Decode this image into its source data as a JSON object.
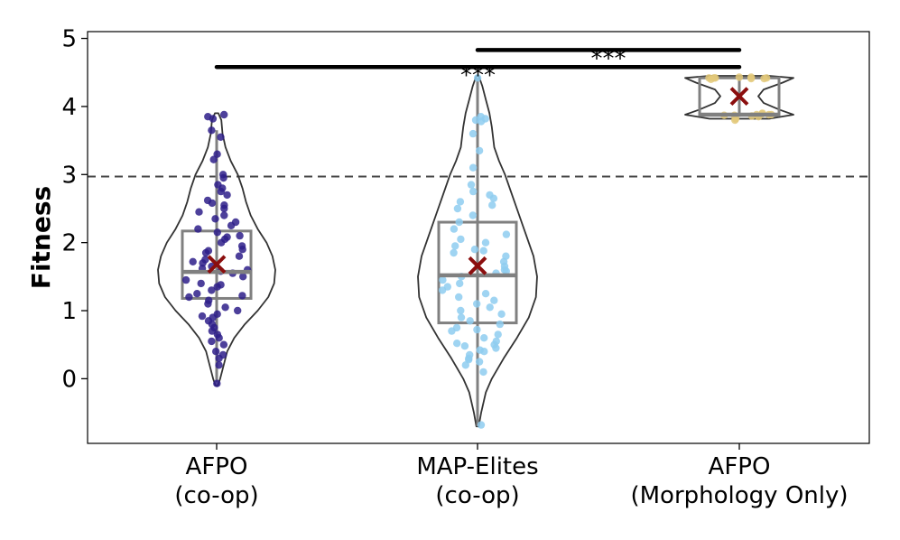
{
  "chart_data": {
    "type": "violin",
    "ylabel": "Fitness",
    "xlabel": "",
    "title": "",
    "ylim": [
      -0.95,
      5.1
    ],
    "yticks": [
      0,
      1,
      2,
      3,
      4,
      5
    ],
    "threshold": 2.97,
    "grid": false,
    "categories": [
      {
        "lines": [
          "AFPO",
          "(co-op)"
        ]
      },
      {
        "lines": [
          "MAP-Elites",
          "(co-op)"
        ]
      },
      {
        "lines": [
          "AFPO",
          "(Morphology Only)"
        ]
      }
    ],
    "series": [
      {
        "color": "#2e1f8a",
        "box": {
          "q1": 1.18,
          "median": 1.57,
          "q3": 2.17,
          "whisker_low": -0.05,
          "whisker_high": 3.65
        },
        "mean": 1.68,
        "density": [
          [
            -0.1,
            0.02
          ],
          [
            0.0,
            0.06
          ],
          [
            0.2,
            0.12
          ],
          [
            0.4,
            0.18
          ],
          [
            0.6,
            0.3
          ],
          [
            0.8,
            0.48
          ],
          [
            1.0,
            0.7
          ],
          [
            1.2,
            0.88
          ],
          [
            1.4,
            0.98
          ],
          [
            1.6,
            1.0
          ],
          [
            1.8,
            0.95
          ],
          [
            2.0,
            0.85
          ],
          [
            2.2,
            0.7
          ],
          [
            2.4,
            0.58
          ],
          [
            2.6,
            0.5
          ],
          [
            2.8,
            0.44
          ],
          [
            3.0,
            0.36
          ],
          [
            3.2,
            0.24
          ],
          [
            3.4,
            0.15
          ],
          [
            3.6,
            0.1
          ],
          [
            3.8,
            0.08
          ],
          [
            3.9,
            0.03
          ]
        ],
        "points": [
          3.85,
          3.88,
          3.82,
          3.65,
          3.55,
          3.3,
          3.22,
          3.0,
          2.95,
          2.85,
          2.8,
          2.75,
          2.7,
          2.62,
          2.58,
          2.55,
          2.5,
          2.45,
          2.4,
          2.35,
          2.3,
          2.25,
          2.2,
          2.15,
          2.1,
          2.08,
          2.05,
          2.0,
          1.95,
          1.9,
          1.88,
          1.85,
          1.8,
          1.75,
          1.72,
          1.7,
          1.65,
          1.62,
          1.6,
          1.58,
          1.55,
          1.5,
          1.45,
          1.4,
          1.38,
          1.35,
          1.3,
          1.25,
          1.22,
          1.2,
          1.15,
          1.1,
          1.05,
          1.0,
          0.95,
          0.92,
          0.9,
          0.85,
          0.8,
          0.75,
          0.7,
          0.65,
          0.6,
          0.55,
          0.5,
          0.4,
          0.35,
          0.3,
          0.2,
          -0.07
        ]
      },
      {
        "color": "#8ecdf0",
        "box": {
          "q1": 0.82,
          "median": 1.52,
          "q3": 2.3,
          "whisker_low": -0.7,
          "whisker_high": 4.42
        },
        "mean": 1.66,
        "density": [
          [
            -0.7,
            0.02
          ],
          [
            -0.5,
            0.06
          ],
          [
            -0.2,
            0.14
          ],
          [
            0.0,
            0.24
          ],
          [
            0.3,
            0.44
          ],
          [
            0.6,
            0.66
          ],
          [
            0.9,
            0.86
          ],
          [
            1.2,
            0.98
          ],
          [
            1.5,
            1.0
          ],
          [
            1.8,
            0.94
          ],
          [
            2.1,
            0.82
          ],
          [
            2.4,
            0.7
          ],
          [
            2.7,
            0.58
          ],
          [
            3.0,
            0.46
          ],
          [
            3.2,
            0.36
          ],
          [
            3.4,
            0.28
          ],
          [
            3.7,
            0.24
          ],
          [
            3.9,
            0.2
          ],
          [
            4.1,
            0.14
          ],
          [
            4.3,
            0.08
          ],
          [
            4.45,
            0.02
          ]
        ],
        "points": [
          4.42,
          3.85,
          3.82,
          3.8,
          3.78,
          3.6,
          3.35,
          3.1,
          2.85,
          2.75,
          2.7,
          2.65,
          2.6,
          2.55,
          2.5,
          2.4,
          2.3,
          2.2,
          2.12,
          2.05,
          2.0,
          1.95,
          1.9,
          1.88,
          1.85,
          1.8,
          1.72,
          1.65,
          1.6,
          1.58,
          1.55,
          1.5,
          1.45,
          1.4,
          1.35,
          1.3,
          1.25,
          1.2,
          1.15,
          1.1,
          1.05,
          1.0,
          0.95,
          0.9,
          0.85,
          0.8,
          0.75,
          0.72,
          0.7,
          0.65,
          0.6,
          0.55,
          0.52,
          0.5,
          0.48,
          0.45,
          0.42,
          0.4,
          0.35,
          0.3,
          0.28,
          0.25,
          0.2,
          0.1,
          -0.68
        ]
      },
      {
        "color": "#e3c97a",
        "box": {
          "q1": 3.88,
          "median": 3.88,
          "q3": 4.42,
          "whisker_low": 3.85,
          "whisker_high": 4.43
        },
        "mean": 4.15,
        "density": [
          [
            3.82,
            0.55
          ],
          [
            3.88,
            1.0
          ],
          [
            3.95,
            0.75
          ],
          [
            4.05,
            0.45
          ],
          [
            4.15,
            0.35
          ],
          [
            4.25,
            0.45
          ],
          [
            4.35,
            0.8
          ],
          [
            4.42,
            1.0
          ],
          [
            4.45,
            0.55
          ]
        ],
        "points": [
          4.43,
          4.43,
          4.42,
          4.42,
          4.42,
          4.42,
          4.41,
          4.41,
          4.4,
          3.9,
          3.89,
          3.88,
          3.88,
          3.88,
          3.87,
          3.87,
          3.86,
          3.85,
          3.82,
          3.8
        ]
      }
    ],
    "significance": [
      {
        "from": 1,
        "to": 2,
        "y": 4.83,
        "label": "***"
      },
      {
        "from": 0,
        "to": 2,
        "y": 4.58,
        "label": "***"
      }
    ]
  }
}
